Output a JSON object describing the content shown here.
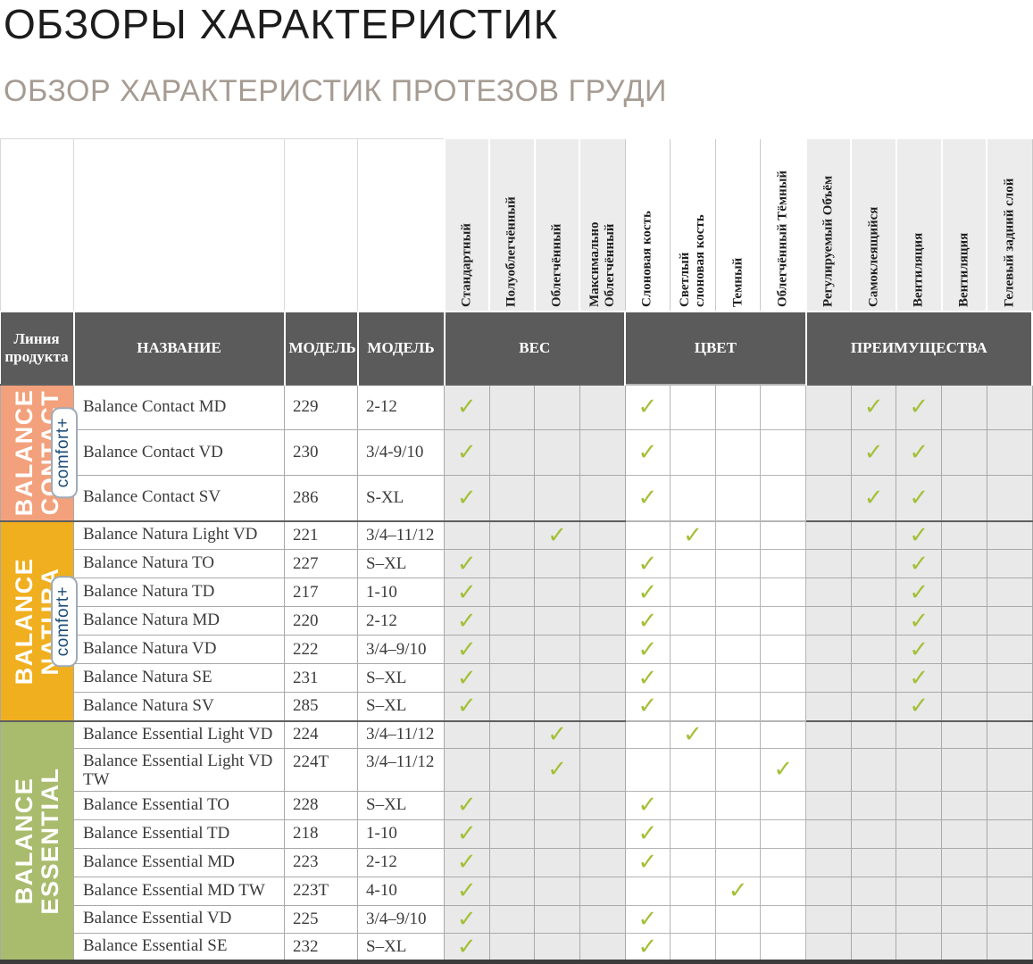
{
  "page": {
    "title": "ОБЗОРЫ ХАРАКТЕРИСТИК",
    "subtitle": "ОБЗОР ХАРАКТЕРИСТИК ПРОТЕЗОВ ГРУДИ"
  },
  "glyphs": {
    "check": "✓"
  },
  "colors": {
    "header_band": "#5b5b5b",
    "check_green": "#a3c037",
    "cell_gray": "#e9e9e9",
    "contact_orange": "#f2a17c",
    "natura_yellow": "#f0af1f",
    "essential_green": "#a9bc6e",
    "badge_blue": "#1d4e78"
  },
  "table": {
    "headers": {
      "product_line": "Линия продукта",
      "name": "НАЗВАНИЕ",
      "model": "МОДЕЛЬ",
      "model2": "МОДЕЛЬ"
    },
    "groups": [
      {
        "label": "ВЕС",
        "span": 4,
        "tint": "gray"
      },
      {
        "label": "ЦВЕТ",
        "span": 4,
        "tint": "white"
      },
      {
        "label": "ПРЕИМУЩЕСТВА",
        "span": 5,
        "tint": "gray"
      }
    ],
    "features": [
      {
        "label": "Стандартный"
      },
      {
        "label": "Полуоблегчённый"
      },
      {
        "label": "Облегчённый"
      },
      {
        "label": "Максимально\nОблегчённый"
      },
      {
        "label": "Слоновая кость"
      },
      {
        "label": "Светлый\nслоновая кость"
      },
      {
        "label": "Темный"
      },
      {
        "label": "Облегчённый Тёмный"
      },
      {
        "label": "Регулируемый Объём"
      },
      {
        "label": "Самоклеящийся"
      },
      {
        "label": "Вентиляция"
      },
      {
        "label": "Вентиляция"
      },
      {
        "label": "Гелевый задний слой"
      }
    ],
    "sections": [
      {
        "label": "BALANCE\nCONTACT",
        "badge": "comfort+",
        "color": "#f2a17c",
        "rows": [
          {
            "name": "Balance Contact MD",
            "model": "229",
            "sizes": "2-12",
            "checks": [
              1,
              5,
              10,
              11
            ]
          },
          {
            "name": "Balance Contact VD",
            "model": "230",
            "sizes": "3/4-9/10",
            "checks": [
              1,
              5,
              10,
              11
            ]
          },
          {
            "name": "Balance Contact SV",
            "model": "286",
            "sizes": "S-XL",
            "checks": [
              1,
              5,
              10,
              11
            ]
          }
        ]
      },
      {
        "label": "BALANCE\nNATURA",
        "badge": "comfort+",
        "color": "#f0af1f",
        "rows": [
          {
            "name": "Balance Natura Light VD",
            "model": "221",
            "sizes": "3/4–11/12",
            "checks": [
              3,
              6,
              11
            ]
          },
          {
            "name": "Balance Natura TO",
            "model": "227",
            "sizes": "S–XL",
            "checks": [
              1,
              5,
              11
            ]
          },
          {
            "name": "Balance Natura TD",
            "model": "217",
            "sizes": "1-10",
            "checks": [
              1,
              5,
              11
            ]
          },
          {
            "name": "Balance Natura MD",
            "model": "220",
            "sizes": "2-12",
            "checks": [
              1,
              5,
              11
            ]
          },
          {
            "name": "Balance Natura VD",
            "model": "222",
            "sizes": "3/4–9/10",
            "checks": [
              1,
              5,
              11
            ]
          },
          {
            "name": "Balance Natura SE",
            "model": "231",
            "sizes": "S–XL",
            "checks": [
              1,
              5,
              11
            ]
          },
          {
            "name": "Balance Natura SV",
            "model": "285",
            "sizes": "S–XL",
            "checks": [
              1,
              5,
              11
            ]
          }
        ]
      },
      {
        "label": "BALANCE\nESSENTIAL",
        "badge": "",
        "color": "#a9bc6e",
        "rows": [
          {
            "name": "Balance Essential Light VD",
            "model": "224",
            "sizes": "3/4–11/12",
            "checks": [
              3,
              6
            ]
          },
          {
            "name": "Balance Essential Light VD TW",
            "model": "224T",
            "sizes": "3/4–11/12",
            "checks": [
              3,
              8
            ]
          },
          {
            "name": "Balance Essential TO",
            "model": "228",
            "sizes": "S–XL",
            "checks": [
              1,
              5
            ]
          },
          {
            "name": "Balance Essential TD",
            "model": "218",
            "sizes": "1-10",
            "checks": [
              1,
              5
            ]
          },
          {
            "name": "Balance Essential MD",
            "model": "223",
            "sizes": "2-12",
            "checks": [
              1,
              5
            ]
          },
          {
            "name": "Balance Essential MD TW",
            "model": "223T",
            "sizes": "4-10",
            "checks": [
              1,
              7
            ]
          },
          {
            "name": "Balance Essential VD",
            "model": "225",
            "sizes": "3/4–9/10",
            "checks": [
              1,
              5
            ]
          },
          {
            "name": "Balance Essential SE",
            "model": "232",
            "sizes": "S–XL",
            "checks": [
              1,
              5
            ]
          }
        ]
      }
    ]
  }
}
